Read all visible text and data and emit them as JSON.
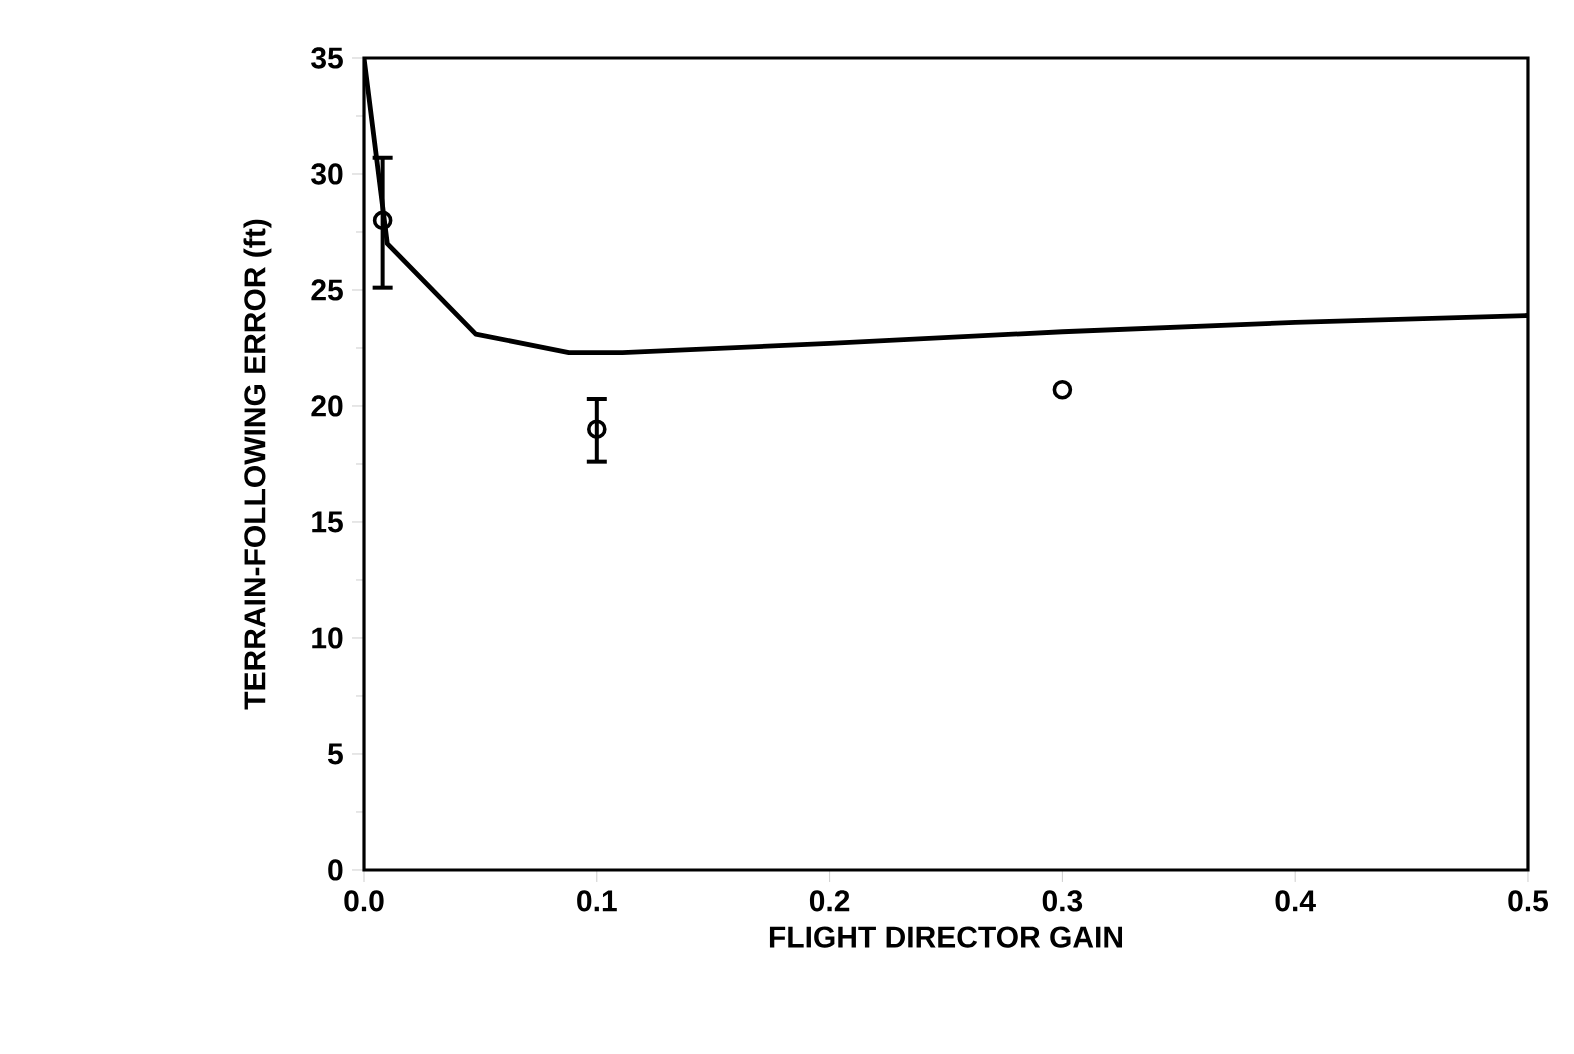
{
  "chart_data": {
    "type": "line",
    "xlabel": "FLIGHT DIRECTOR GAIN",
    "ylabel": "TERRAIN-FOLLOWING  ERROR  (ft)",
    "xlim": [
      0,
      0.5
    ],
    "ylim": [
      0,
      35
    ],
    "xticks": [
      {
        "value": 0,
        "label": "0.0"
      },
      {
        "value": 0.1,
        "label": "0.1"
      },
      {
        "value": 0.2,
        "label": "0.2"
      },
      {
        "value": 0.3,
        "label": "0.3"
      },
      {
        "value": 0.4,
        "label": "0.4"
      },
      {
        "value": 0.5,
        "label": "0.5"
      }
    ],
    "yticks": [
      0,
      5,
      10,
      15,
      20,
      25,
      30,
      35
    ],
    "grid": false,
    "series": [
      {
        "color": "#000000",
        "marker": "none",
        "line_style": "solid",
        "x": [
          0,
          0.01,
          0.048,
          0.088,
          0.111,
          0.2,
          0.3,
          0.4,
          0.5
        ],
        "values": [
          35,
          27.0,
          23.1,
          22.3,
          22.3,
          22.7,
          23.2,
          23.6,
          23.9
        ]
      },
      {
        "type": "scatter",
        "color": "#000000",
        "marker": "circle",
        "x": [
          0.008,
          0.1,
          0.3
        ],
        "values": [
          28.0,
          19.0,
          20.7
        ],
        "errors": [
          [
            25.1,
            30.7
          ],
          [
            17.6,
            20.3
          ],
          null
        ]
      }
    ]
  }
}
